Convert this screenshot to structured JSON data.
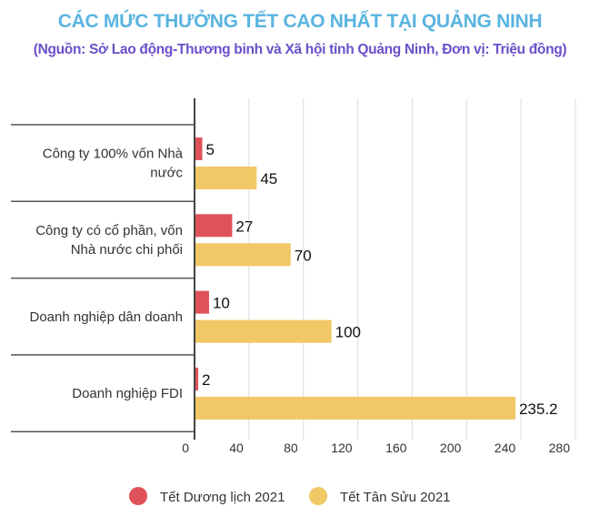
{
  "chart_data": {
    "type": "bar",
    "orientation": "horizontal",
    "title": "CÁC MỨC THƯỞNG TẾT CAO NHẤT TẠI QUẢNG NINH",
    "subtitle": "(Nguồn: Sở Lao động-Thương binh và Xã hội tỉnh Quảng Ninh, Đơn vị: Triệu đồng)",
    "categories": [
      [
        "Công ty 100% vốn Nhà",
        "nước"
      ],
      [
        "Công ty có cổ phần, vốn",
        "Nhà nước chi phối"
      ],
      [
        "Doanh nghiệp dân doanh"
      ],
      [
        "Doanh nghiệp FDI"
      ]
    ],
    "series": [
      {
        "name": "Tết Dương lịch 2021",
        "color": "#e0525a",
        "values": [
          5,
          27,
          10,
          2
        ],
        "labels": [
          "5",
          "27",
          "10",
          "2"
        ]
      },
      {
        "name": "Tết Tân Sửu 2021",
        "color": "#f0c865",
        "values": [
          45,
          70,
          100,
          235.2
        ],
        "labels": [
          "45",
          "70",
          "100",
          "235.2"
        ]
      }
    ],
    "xlim": [
      0,
      280
    ],
    "xticks": [
      "0",
      "40",
      "80",
      "120",
      "160",
      "200",
      "240",
      "280"
    ],
    "xtick_values": [
      0,
      40,
      80,
      120,
      160,
      200,
      240,
      280
    ],
    "grid": true,
    "legend_position": "bottom"
  }
}
